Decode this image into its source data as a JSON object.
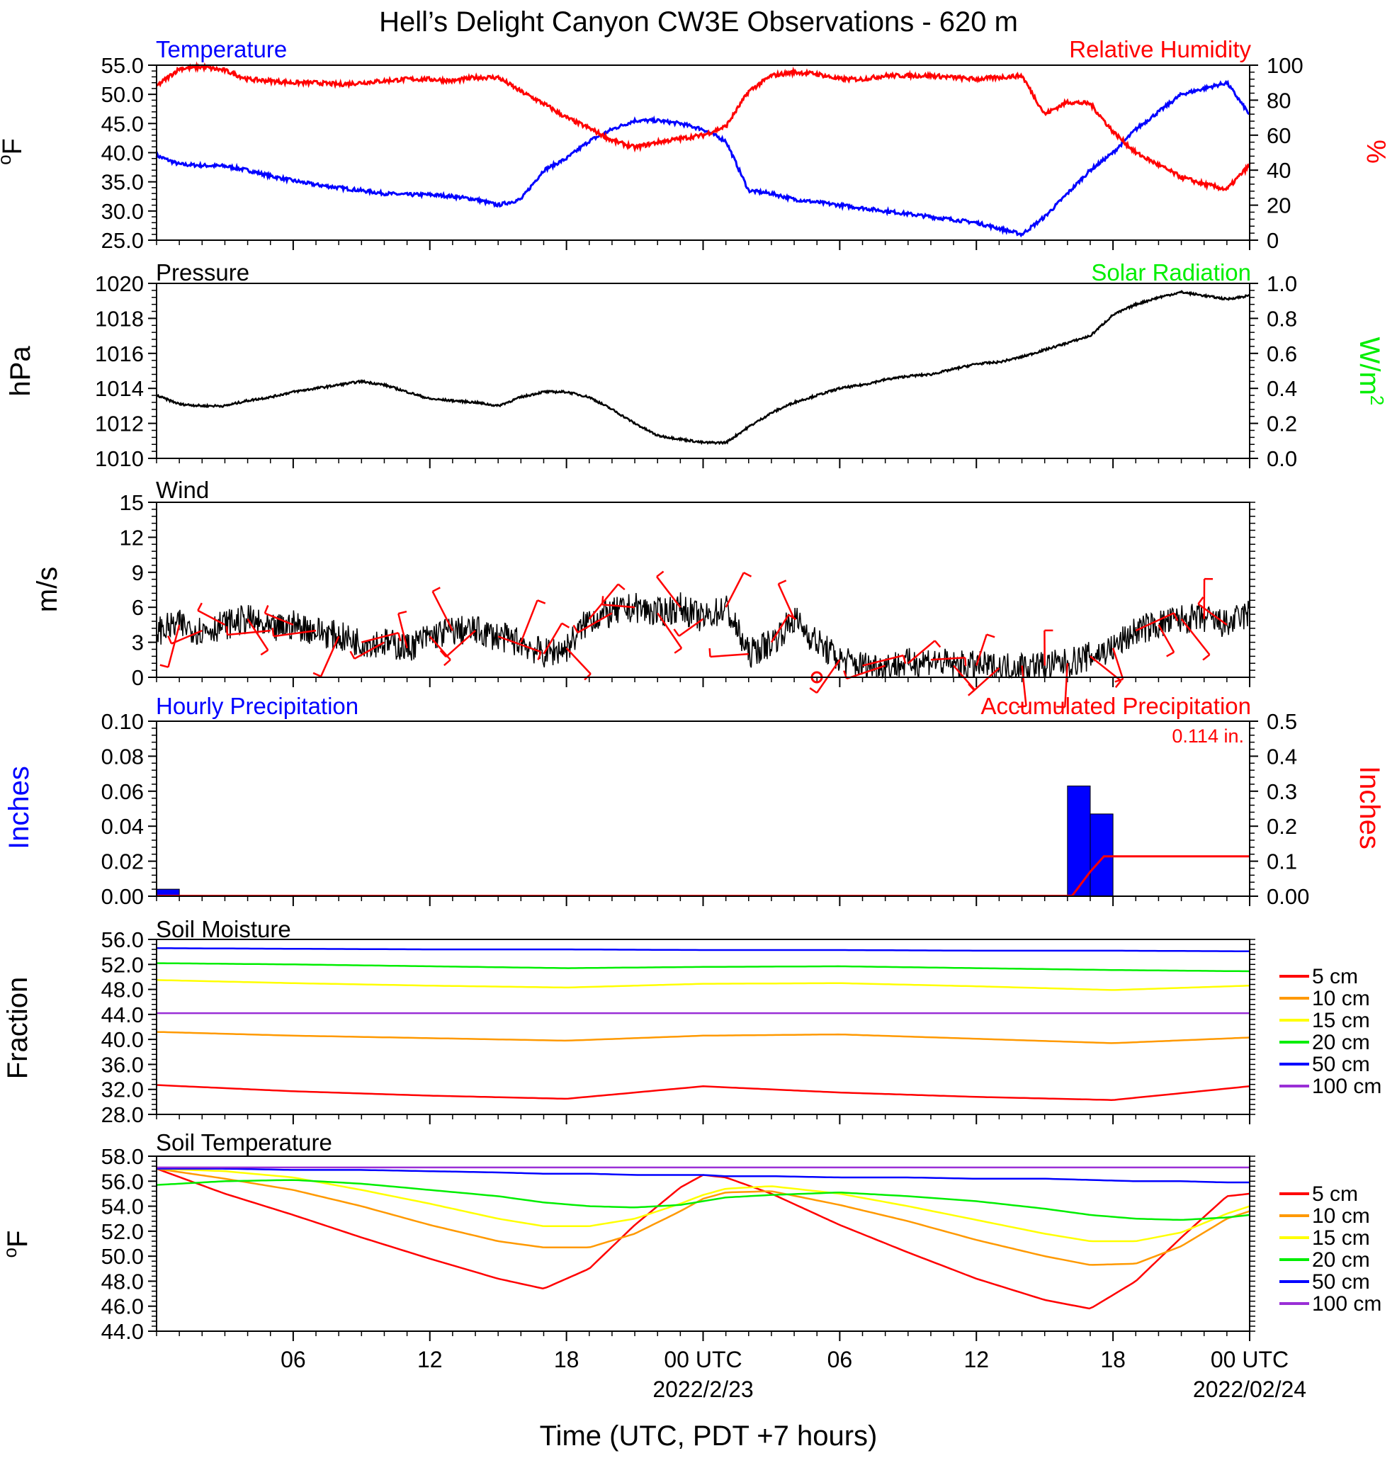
{
  "title": "Hell’s Delight Canyon CW3E Observations - 620 m",
  "xaxis": {
    "label": "Time (UTC, PDT +7 hours)",
    "ticks": [
      "06",
      "12",
      "18",
      "00 UTC",
      "06",
      "12",
      "18",
      "00 UTC"
    ],
    "dates": [
      "2022/2/23",
      "2022/02/24"
    ]
  },
  "colors": {
    "temperature": "#0000ff",
    "humidity": "#ff0000",
    "pressure": "#000000",
    "solar": "#00ee00",
    "wind": "#000000",
    "barb": "#ff0000",
    "hourly": "#0000ff",
    "accum": "#ff0000"
  },
  "legend": {
    "title_labels": [
      "5 cm",
      "10 cm",
      "15 cm",
      "20 cm",
      "50 cm",
      "100 cm"
    ],
    "colors": [
      "#ff0000",
      "#ff9900",
      "#ffff00",
      "#00ee00",
      "#0000ff",
      "#9a2fd6"
    ]
  },
  "chart_data": [
    {
      "type": "line",
      "panel": "temperature-humidity",
      "left_title": "Temperature",
      "right_title": "Relative Humidity",
      "ylabel": "oF",
      "y2label": "%",
      "ylim": [
        25,
        55
      ],
      "y2lim": [
        0,
        100
      ],
      "yticks": [
        "55.0",
        "50.0",
        "45.0",
        "40.0",
        "35.0",
        "30.0",
        "25.0"
      ],
      "y2ticks": [
        "100",
        "80",
        "60",
        "40",
        "20",
        "0"
      ],
      "x_hours": [
        0,
        1,
        2,
        3,
        4,
        5,
        6,
        7,
        8,
        9,
        10,
        11,
        12,
        13,
        14,
        15,
        16,
        17,
        18,
        19,
        20,
        21,
        22,
        23,
        24,
        25,
        26,
        27,
        28,
        29,
        30,
        31,
        32,
        33,
        34,
        35,
        36,
        37,
        38,
        39,
        40,
        41,
        42,
        43,
        44,
        45,
        46,
        47,
        48
      ],
      "series": [
        {
          "name": "Temperature",
          "axis": "left",
          "values": [
            39.5,
            38.0,
            37.8,
            37.7,
            37.0,
            36.0,
            35.2,
            34.5,
            34.0,
            33.5,
            33.0,
            32.8,
            32.8,
            32.5,
            32.0,
            31.0,
            32.0,
            37.0,
            39.0,
            42.0,
            44.0,
            45.5,
            45.5,
            45.0,
            44.0,
            42.0,
            33.5,
            33.0,
            32.0,
            31.5,
            31.0,
            30.5,
            30.0,
            29.5,
            29.0,
            28.5,
            28.0,
            27.0,
            26.0,
            29.0,
            33.0,
            37.0,
            40.0,
            44.0,
            47.0,
            50.0,
            51.0,
            52.0,
            46.5
          ]
        },
        {
          "name": "Relative Humidity",
          "axis": "right",
          "values": [
            88,
            98,
            99,
            97,
            92,
            91,
            90,
            90,
            89,
            90,
            91,
            92,
            92,
            91,
            93,
            93,
            85,
            78,
            70,
            64,
            57,
            53,
            56,
            58,
            60,
            65,
            85,
            94,
            96,
            95,
            92,
            92,
            94,
            94,
            94,
            93,
            92,
            93,
            94,
            72,
            79,
            78,
            62,
            50,
            43,
            36,
            32,
            29,
            43
          ]
        }
      ]
    },
    {
      "type": "line",
      "panel": "pressure",
      "left_title": "Pressure",
      "right_title": "Solar Radiation",
      "ylabel": "hPa",
      "y2label": "W/m2",
      "ylim": [
        1010,
        1020
      ],
      "y2lim": [
        0,
        1
      ],
      "yticks": [
        "1020",
        "1018",
        "1016",
        "1014",
        "1012",
        "1010"
      ],
      "y2ticks": [
        "1.0",
        "0.8",
        "0.6",
        "0.4",
        "0.2",
        "0.0"
      ],
      "x_hours": [
        0,
        1,
        2,
        3,
        4,
        5,
        6,
        7,
        8,
        9,
        10,
        11,
        12,
        13,
        14,
        15,
        16,
        17,
        18,
        19,
        20,
        21,
        22,
        23,
        24,
        25,
        26,
        27,
        28,
        29,
        30,
        31,
        32,
        33,
        34,
        35,
        36,
        37,
        38,
        39,
        40,
        41,
        42,
        43,
        44,
        45,
        46,
        47,
        48
      ],
      "series": [
        {
          "name": "Pressure",
          "axis": "left",
          "values": [
            1013.6,
            1013.1,
            1013.0,
            1013.0,
            1013.3,
            1013.5,
            1013.8,
            1014.0,
            1014.2,
            1014.4,
            1014.2,
            1013.8,
            1013.4,
            1013.3,
            1013.2,
            1013.0,
            1013.5,
            1013.8,
            1013.8,
            1013.5,
            1012.8,
            1012.0,
            1011.3,
            1011.1,
            1010.9,
            1010.9,
            1011.8,
            1012.6,
            1013.2,
            1013.6,
            1014.0,
            1014.2,
            1014.5,
            1014.7,
            1014.8,
            1015.1,
            1015.4,
            1015.5,
            1015.8,
            1016.2,
            1016.6,
            1017.0,
            1018.2,
            1018.8,
            1019.2,
            1019.5,
            1019.3,
            1019.1,
            1019.3
          ]
        }
      ]
    },
    {
      "type": "line",
      "panel": "wind",
      "left_title": "Wind",
      "ylabel": "m/s",
      "ylim": [
        0,
        15
      ],
      "yticks": [
        "15",
        "12",
        "9",
        "6",
        "3",
        "0"
      ],
      "x_hours": [
        0,
        1,
        2,
        3,
        4,
        5,
        6,
        7,
        8,
        9,
        10,
        11,
        12,
        13,
        14,
        15,
        16,
        17,
        18,
        19,
        20,
        21,
        22,
        23,
        24,
        25,
        26,
        27,
        28,
        29,
        30,
        31,
        32,
        33,
        34,
        35,
        36,
        37,
        38,
        39,
        40,
        41,
        42,
        43,
        44,
        45,
        46,
        47,
        48
      ],
      "series": [
        {
          "name": "Wind",
          "axis": "left",
          "values": [
            4.0,
            4.5,
            4.0,
            4.5,
            5.0,
            4.0,
            4.5,
            4.0,
            3.5,
            3.0,
            3.0,
            2.5,
            3.5,
            4.0,
            4.0,
            3.5,
            3.0,
            2.0,
            2.5,
            5.0,
            5.5,
            6.0,
            5.5,
            6.0,
            5.0,
            6.0,
            2.0,
            3.0,
            5.0,
            3.0,
            1.5,
            1.0,
            1.0,
            1.2,
            1.5,
            1.0,
            1.0,
            0.8,
            1.0,
            1.0,
            1.2,
            1.8,
            2.5,
            4.0,
            4.5,
            5.0,
            5.0,
            4.5,
            5.5
          ]
        }
      ]
    },
    {
      "type": "bar",
      "panel": "precipitation",
      "left_title": "Hourly Precipitation",
      "right_title": "Accumulated Precipitation",
      "total_label": "0.114 in.",
      "ylabel": "Inches",
      "y2label": "Inches",
      "ylim": [
        0,
        0.1
      ],
      "y2lim": [
        0,
        0.5
      ],
      "yticks": [
        "0.10",
        "0.08",
        "0.06",
        "0.04",
        "0.02",
        "0.00"
      ],
      "y2ticks": [
        "0.5",
        "0.4",
        "0.3",
        "0.2",
        "0.1",
        "0.00"
      ],
      "bars": [
        {
          "x_hours": 0.5,
          "value": 0.004
        },
        {
          "x_hours": 40.5,
          "value": 0.063
        },
        {
          "x_hours": 41.5,
          "value": 0.047
        }
      ],
      "accumulated": [
        {
          "x_hours": 0,
          "value": 0.001
        },
        {
          "x_hours": 40.2,
          "value": 0.001
        },
        {
          "x_hours": 41.0,
          "value": 0.07
        },
        {
          "x_hours": 41.6,
          "value": 0.114
        },
        {
          "x_hours": 48,
          "value": 0.114
        }
      ]
    },
    {
      "type": "line",
      "panel": "soil-moisture",
      "left_title": "Soil Moisture",
      "ylabel": "Fraction",
      "ylim": [
        28,
        56
      ],
      "yticks": [
        "56.0",
        "52.0",
        "48.0",
        "44.0",
        "40.0",
        "36.0",
        "32.0",
        "28.0"
      ],
      "x_hours": [
        0,
        6,
        12,
        18,
        24,
        30,
        36,
        42,
        48
      ],
      "series": [
        {
          "name": "5 cm",
          "values": [
            32.7,
            31.7,
            31.0,
            30.5,
            32.5,
            31.5,
            30.8,
            30.3,
            32.5
          ]
        },
        {
          "name": "10 cm",
          "values": [
            41.2,
            40.6,
            40.2,
            39.8,
            40.6,
            40.8,
            40.1,
            39.4,
            40.3
          ]
        },
        {
          "name": "15 cm",
          "values": [
            49.5,
            49.0,
            48.6,
            48.3,
            48.9,
            49.0,
            48.5,
            47.9,
            48.6
          ]
        },
        {
          "name": "20 cm",
          "values": [
            52.2,
            52.0,
            51.7,
            51.4,
            51.6,
            51.7,
            51.4,
            51.1,
            50.9
          ]
        },
        {
          "name": "50 cm",
          "values": [
            54.6,
            54.5,
            54.4,
            54.4,
            54.3,
            54.3,
            54.2,
            54.2,
            54.1
          ]
        },
        {
          "name": "100 cm",
          "values": [
            44.2,
            44.2,
            44.2,
            44.2,
            44.2,
            44.2,
            44.2,
            44.2,
            44.2
          ]
        }
      ]
    },
    {
      "type": "line",
      "panel": "soil-temperature",
      "left_title": "Soil Temperature",
      "ylabel": "oF",
      "ylim": [
        44,
        58
      ],
      "yticks": [
        "58.0",
        "56.0",
        "54.0",
        "52.0",
        "50.0",
        "48.0",
        "46.0",
        "44.0"
      ],
      "x_hours": [
        0,
        3,
        6,
        9,
        12,
        15,
        17,
        19,
        21,
        23,
        24,
        25,
        27,
        30,
        33,
        36,
        39,
        41,
        43,
        45,
        47,
        48
      ],
      "series": [
        {
          "name": "5 cm",
          "values": [
            57.0,
            55.0,
            53.3,
            51.5,
            49.8,
            48.2,
            47.4,
            49.0,
            52.5,
            55.5,
            56.5,
            56.3,
            55.0,
            52.5,
            50.3,
            48.2,
            46.5,
            45.8,
            48.0,
            51.5,
            54.8,
            55.0
          ]
        },
        {
          "name": "10 cm",
          "values": [
            57.0,
            56.2,
            55.3,
            54.0,
            52.5,
            51.2,
            50.7,
            50.7,
            51.8,
            53.6,
            54.6,
            55.1,
            55.2,
            54.1,
            52.8,
            51.3,
            50.0,
            49.3,
            49.4,
            50.8,
            53.0,
            53.6
          ]
        },
        {
          "name": "15 cm",
          "values": [
            57.0,
            56.8,
            56.3,
            55.3,
            54.2,
            53.0,
            52.4,
            52.4,
            53.0,
            54.2,
            54.9,
            55.4,
            55.6,
            55.0,
            54.0,
            52.9,
            51.8,
            51.2,
            51.2,
            51.9,
            53.4,
            54.0
          ]
        },
        {
          "name": "20 cm",
          "values": [
            55.7,
            56.0,
            56.1,
            55.8,
            55.3,
            54.8,
            54.3,
            54.0,
            53.9,
            54.1,
            54.4,
            54.7,
            54.9,
            55.1,
            54.8,
            54.4,
            53.8,
            53.3,
            53.0,
            52.9,
            53.1,
            53.3
          ]
        },
        {
          "name": "50 cm",
          "values": [
            57.0,
            57.0,
            56.9,
            56.9,
            56.8,
            56.7,
            56.6,
            56.6,
            56.5,
            56.5,
            56.5,
            56.4,
            56.4,
            56.3,
            56.3,
            56.2,
            56.2,
            56.1,
            56.0,
            56.0,
            55.9,
            55.9
          ]
        },
        {
          "name": "100 cm",
          "values": [
            57.1,
            57.1,
            57.1,
            57.1,
            57.1,
            57.1,
            57.1,
            57.1,
            57.1,
            57.1,
            57.1,
            57.1,
            57.1,
            57.1,
            57.1,
            57.1,
            57.1,
            57.1,
            57.1,
            57.1,
            57.1,
            57.1
          ]
        }
      ]
    }
  ]
}
